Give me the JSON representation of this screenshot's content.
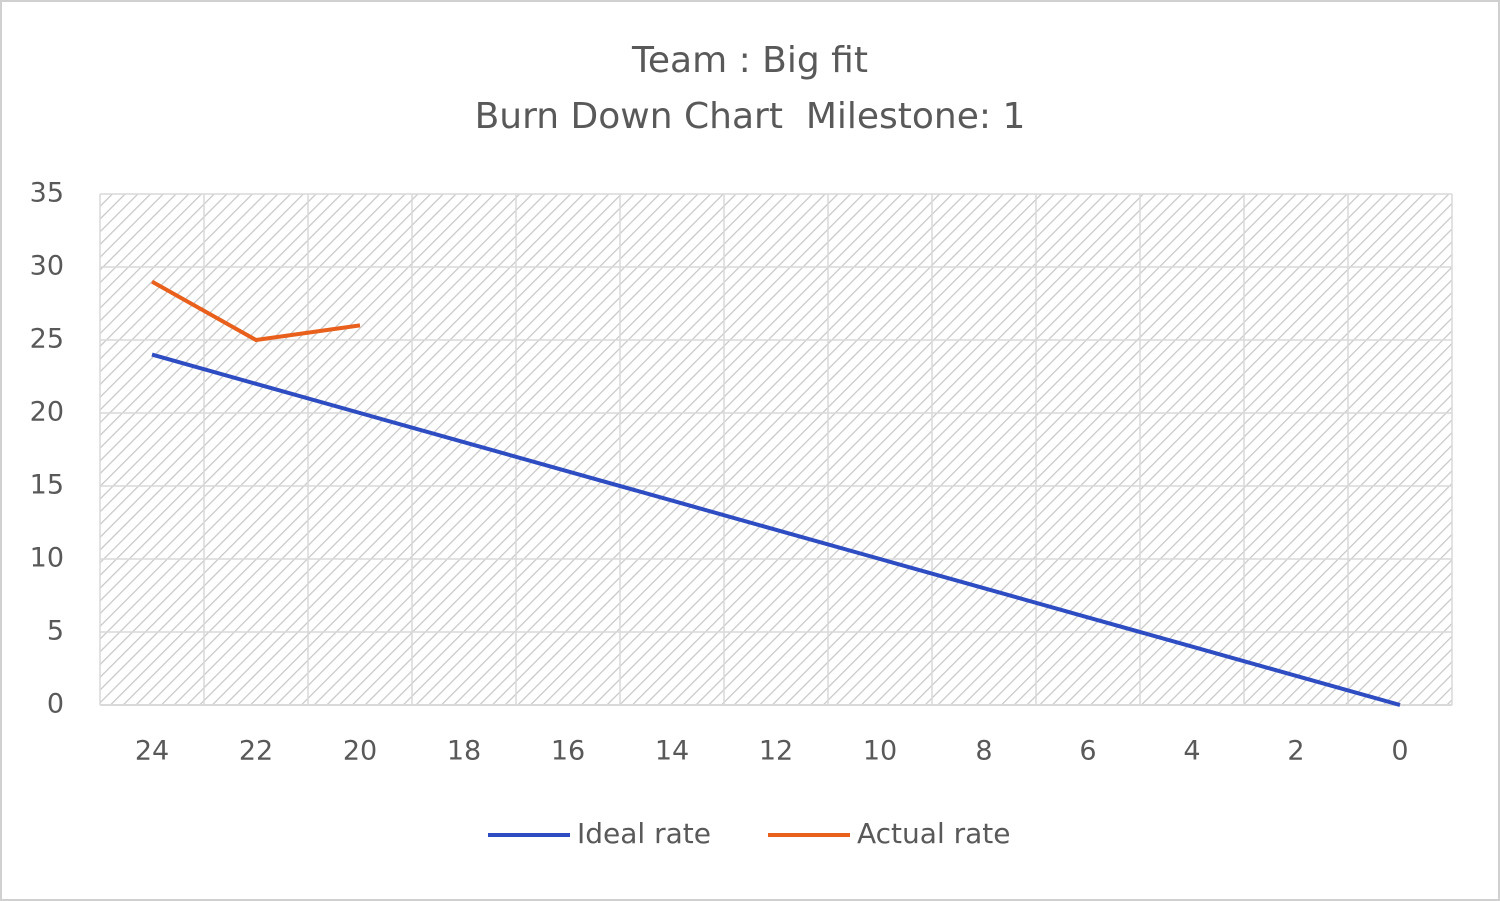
{
  "chart_data": {
    "type": "line",
    "title": "Team : Big fit",
    "subtitle": "Burn Down Chart  Milestone: 1",
    "categories": [
      24,
      22,
      20,
      18,
      16,
      14,
      12,
      10,
      8,
      6,
      4,
      2,
      0
    ],
    "series": [
      {
        "name": "Ideal rate",
        "color": "#2e4dc2",
        "values": [
          24,
          22,
          20,
          18,
          16,
          14,
          12,
          10,
          8,
          6,
          4,
          2,
          0
        ]
      },
      {
        "name": "Actual rate",
        "color": "#e8601c",
        "values": [
          29,
          25,
          26,
          null,
          null,
          null,
          null,
          null,
          null,
          null,
          null,
          null,
          null
        ]
      }
    ],
    "ylim": [
      0,
      35
    ],
    "yticks": [
      0,
      5,
      10,
      15,
      20,
      25,
      30,
      35
    ],
    "grid": true,
    "legend": "bottom"
  }
}
